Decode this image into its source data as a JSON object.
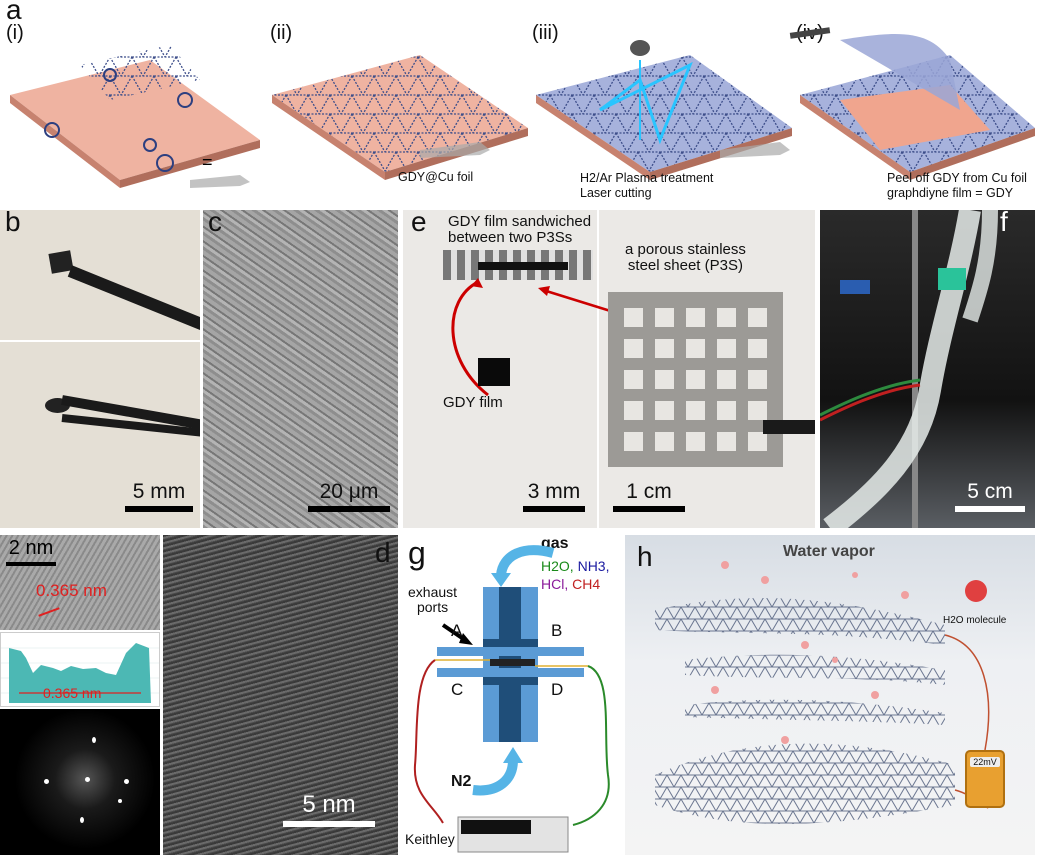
{
  "panel_a": {
    "label": "a",
    "steps": [
      {
        "id": "(i)",
        "caption": ""
      },
      {
        "id": "(ii)",
        "caption": "GDY@Cu foil"
      },
      {
        "id": "(iii)",
        "caption_line1": "H2/Ar Plasma treatment",
        "caption_line2": "Laser cutting"
      },
      {
        "id": "(iv)",
        "caption_line1": "Peel off GDY from Cu foil",
        "caption_line2": "graphdiyne film = GDY"
      }
    ],
    "equals": "="
  },
  "panel_b": {
    "label": "b",
    "scale": "5 mm"
  },
  "panel_c": {
    "label": "c",
    "scale": "20 μm"
  },
  "panel_e": {
    "label": "e",
    "sandwich_line1": "GDY film sandwiched",
    "sandwich_line2": "between two P3Ss",
    "p3s_line1": "a porous stainless",
    "p3s_line2": "steel sheet (P3S)",
    "film": "GDY film",
    "scale_left": "3 mm",
    "scale_right": "1 cm"
  },
  "panel_f": {
    "label": "f",
    "scale": "5 cm"
  },
  "panel_d": {
    "label": "d",
    "inset_scale": "2 nm",
    "spacing": "0.365 nm",
    "profile_spacing": "0.365 nm",
    "scale": "5 nm"
  },
  "panel_g": {
    "label": "g",
    "gas": "gas",
    "gases": [
      {
        "text": "H2O,",
        "color": "#1a8a1a"
      },
      {
        "text": "NH3,",
        "color": "#1a1aa0"
      },
      {
        "text": "HCl,",
        "color": "#8a1a9a"
      },
      {
        "text": "CH4",
        "color": "#c02020"
      }
    ],
    "exhaust_line1": "exhaust",
    "exhaust_line2": "ports",
    "ports": [
      "A",
      "B",
      "C",
      "D"
    ],
    "n2": "N2",
    "instrument": "Keithley"
  },
  "panel_h": {
    "label": "h",
    "title": "Water vapor",
    "molecule": "H2O molecule",
    "meter": "22mV"
  },
  "colors": {
    "cu_foil": "#e9a38f",
    "gdy_film": "#aeb6d8",
    "device_blue": "#5b9bd5",
    "device_dark": "#1f4e79",
    "arrow_blue": "#56b4e6",
    "red_label": "#e02020"
  }
}
